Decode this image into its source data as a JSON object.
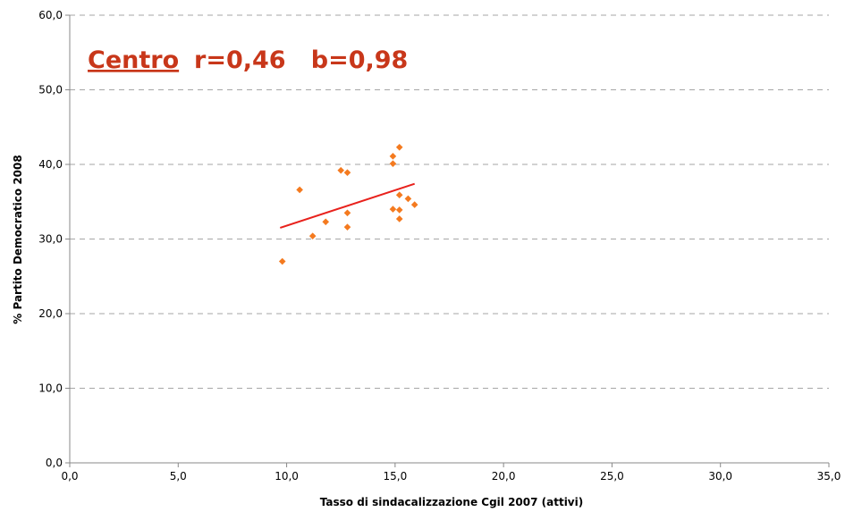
{
  "chart_data": {
    "type": "scatter",
    "title": "",
    "xlabel": "Tasso di sindacalizzazione Cgil 2007 (attivi)",
    "ylabel": "% Partito Democratico 2008",
    "xlim": [
      0,
      35
    ],
    "ylim": [
      0,
      60
    ],
    "x_ticks": [
      0,
      5,
      10,
      15,
      20,
      25,
      30,
      35
    ],
    "y_ticks": [
      0,
      10,
      20,
      30,
      40,
      50,
      60
    ],
    "x_tick_labels": [
      "0,0",
      "5,0",
      "10,0",
      "15,0",
      "20,0",
      "25,0",
      "30,0",
      "35,0"
    ],
    "y_tick_labels": [
      "0,0",
      "10,0",
      "20,0",
      "30,0",
      "40,0",
      "50,0",
      "60,0"
    ],
    "grid": "horizontal-dashed",
    "series": [
      {
        "marker": "diamond",
        "color": "#f47a1f",
        "points": [
          {
            "x": 9.8,
            "y": 27.0
          },
          {
            "x": 10.6,
            "y": 36.6
          },
          {
            "x": 11.2,
            "y": 30.4
          },
          {
            "x": 11.8,
            "y": 32.3
          },
          {
            "x": 12.5,
            "y": 39.2
          },
          {
            "x": 12.8,
            "y": 38.9
          },
          {
            "x": 12.8,
            "y": 33.5
          },
          {
            "x": 12.8,
            "y": 31.6
          },
          {
            "x": 14.9,
            "y": 41.1
          },
          {
            "x": 14.9,
            "y": 40.1
          },
          {
            "x": 14.9,
            "y": 34.0
          },
          {
            "x": 15.2,
            "y": 42.3
          },
          {
            "x": 15.2,
            "y": 35.9
          },
          {
            "x": 15.2,
            "y": 33.9
          },
          {
            "x": 15.2,
            "y": 32.7
          },
          {
            "x": 15.6,
            "y": 35.4
          },
          {
            "x": 15.9,
            "y": 34.6
          }
        ]
      }
    ],
    "trendline": {
      "color": "#e8211c",
      "x": [
        9.7,
        15.9
      ],
      "y": [
        31.5,
        37.4
      ]
    },
    "annotation": {
      "label": "Centro",
      "stats": "r=0,46   b=0,98",
      "color": "#c8371a"
    }
  }
}
